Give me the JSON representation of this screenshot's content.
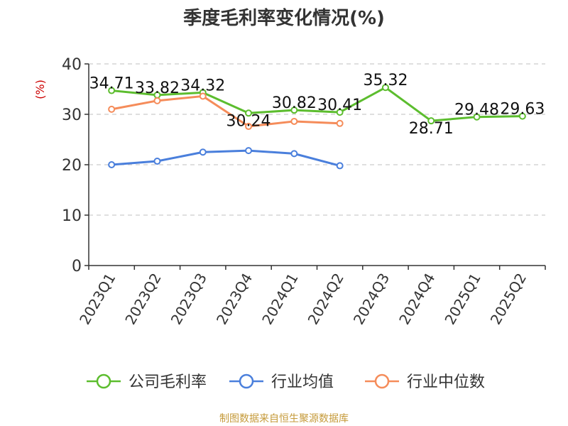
{
  "chart_data": {
    "type": "line",
    "title": "季度毛利率变化情况(%)",
    "ylabel": "(%)",
    "xlabel": "",
    "ylim": [
      0,
      40
    ],
    "yticks": [
      0,
      10,
      20,
      30,
      40
    ],
    "grid": "horizontal-dashed",
    "legend_position": "bottom",
    "categories": [
      "2023Q1",
      "2023Q2",
      "2023Q3",
      "2023Q4",
      "2024Q1",
      "2024Q2",
      "2024Q3",
      "2024Q4",
      "2025Q1",
      "2025Q2"
    ],
    "series": [
      {
        "name": "公司毛利率",
        "color": "#5cbd2e",
        "values": [
          34.71,
          33.82,
          34.32,
          30.24,
          30.82,
          30.41,
          35.32,
          28.71,
          29.48,
          29.63
        ],
        "labels": [
          "34.71",
          "33.82",
          "34.32",
          "30.24",
          "30.82",
          "30.41",
          "35.32",
          "28.71",
          "29.48",
          "29.63"
        ]
      },
      {
        "name": "行业均值",
        "color": "#4a7fdc",
        "values": [
          20.0,
          20.7,
          22.5,
          22.8,
          22.2,
          19.8,
          null,
          null,
          null,
          null
        ]
      },
      {
        "name": "行业中位数",
        "color": "#f58c5a",
        "values": [
          31.0,
          32.7,
          33.6,
          27.6,
          28.6,
          28.2,
          null,
          null,
          null,
          null
        ]
      }
    ],
    "source": "制图数据来自恒生聚源数据库"
  }
}
